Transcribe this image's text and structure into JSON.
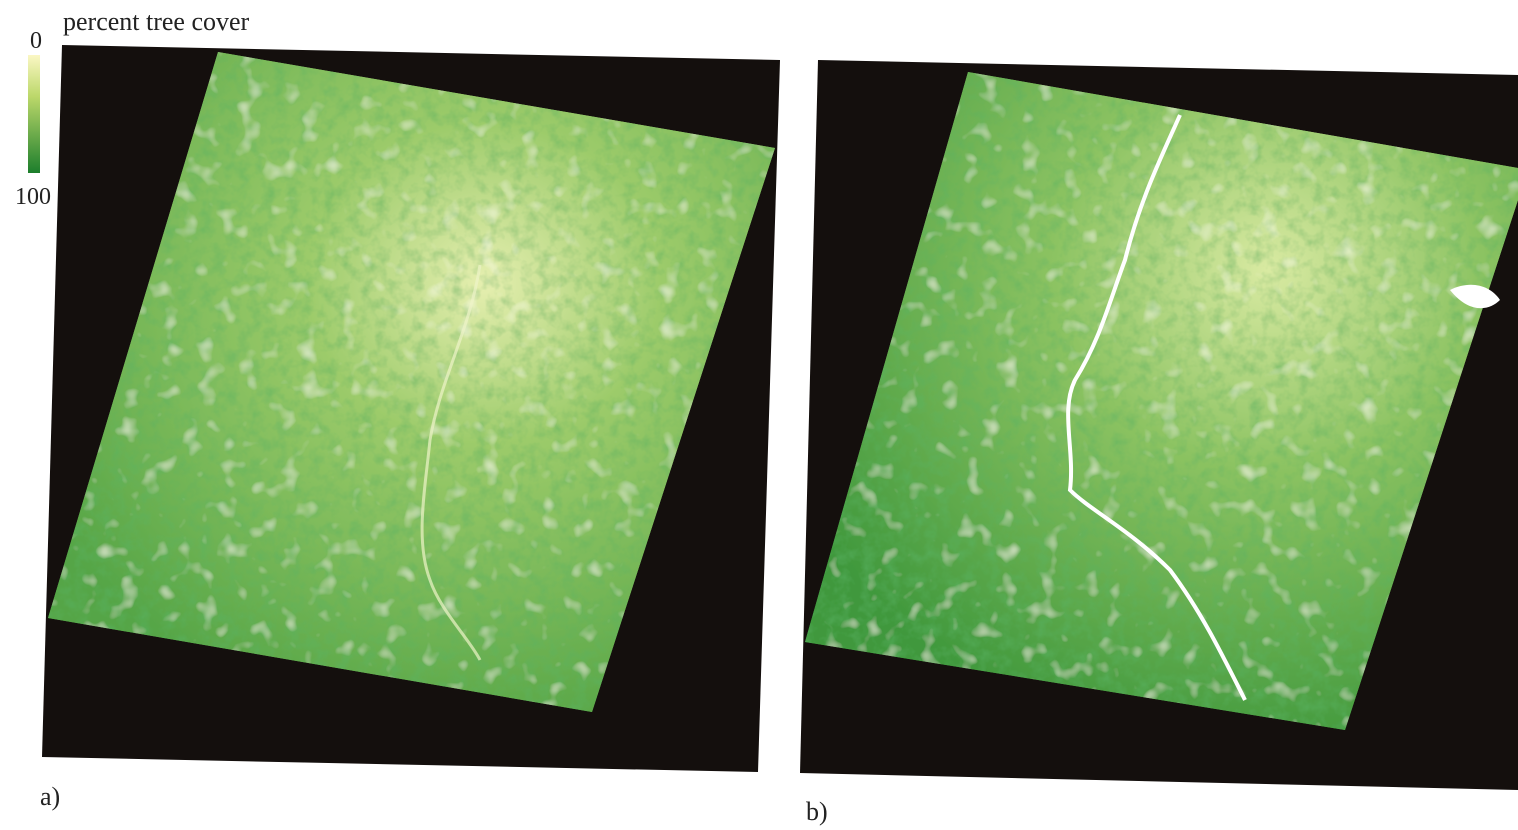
{
  "legend": {
    "title": "percent tree cover",
    "min_label": "0",
    "max_label": "100"
  },
  "panels": [
    {
      "label": "a)"
    },
    {
      "label": "b)"
    }
  ]
}
